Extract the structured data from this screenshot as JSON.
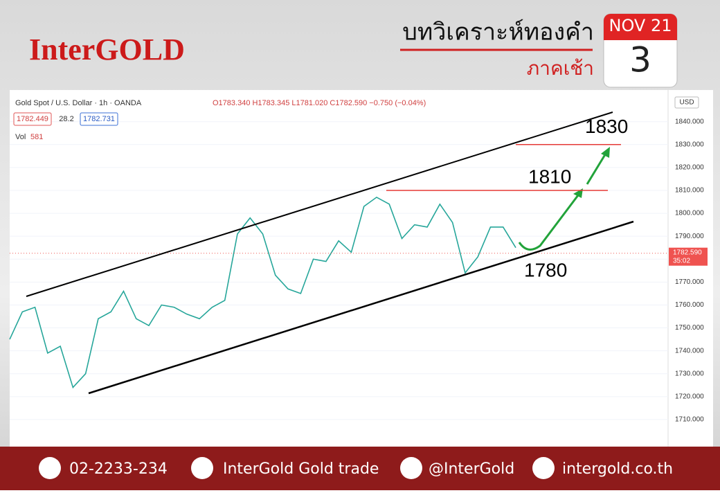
{
  "header": {
    "logo": "InterGOLD",
    "title": "บทวิเคราะห์ทองคำ",
    "subtitle": "ภาคเช้า",
    "month": "NOV 21",
    "day": "3"
  },
  "footer": {
    "phone": "02-2233-234",
    "facebook": "InterGold Gold trade",
    "line": "@InterGold",
    "website": "intergold.co.th"
  },
  "chart_data": {
    "type": "line",
    "title": "Gold Spot / U.S. Dollar · 1h · OANDA",
    "ohlc": "O1783.340 H1783.345 L1781.020 C1782.590 −0.750 (−0.04%)",
    "bid": "1782.449",
    "spread": "28.2",
    "ask": "1782.731",
    "volume_label": "Vol",
    "volume": "581",
    "currency": "USD",
    "color": "#26a69a",
    "values": [
      1745,
      1757,
      1759,
      1739,
      1742,
      1724,
      1730,
      1754,
      1757,
      1766,
      1754,
      1751,
      1760,
      1759,
      1756,
      1754,
      1759,
      1762,
      1791,
      1798,
      1791,
      1773,
      1767,
      1765,
      1780,
      1779,
      1788,
      1783,
      1803,
      1807,
      1804,
      1789,
      1795,
      1794,
      1804,
      1796,
      1774,
      1781,
      1794,
      1794,
      1785
    ],
    "ylim": [
      1700,
      1852
    ],
    "yticks": [
      {
        "value": 1710,
        "label": "1710.000"
      },
      {
        "value": 1720,
        "label": "1720.000"
      },
      {
        "value": 1730,
        "label": "1730.000"
      },
      {
        "value": 1740,
        "label": "1740.000"
      },
      {
        "value": 1750,
        "label": "1750.000"
      },
      {
        "value": 1760,
        "label": "1760.000"
      },
      {
        "value": 1770,
        "label": "1770.000"
      },
      {
        "value": 1780,
        "label": "1780.000"
      },
      {
        "value": 1790,
        "label": "1790.000"
      },
      {
        "value": 1800,
        "label": "1800.000"
      },
      {
        "value": 1810,
        "label": "1810.000"
      },
      {
        "value": 1820,
        "label": "1820.000"
      },
      {
        "value": 1830,
        "label": "1830.000"
      },
      {
        "value": 1840,
        "label": "1840.000"
      }
    ],
    "grid": true,
    "price_tag": {
      "value": 1782.59,
      "label": "1782.590",
      "timer": "35:02",
      "color": "#ef5350"
    },
    "levels": [
      {
        "label": "1830",
        "value": 1830,
        "line": true
      },
      {
        "label": "1810",
        "value": 1810,
        "line": true
      },
      {
        "label": "1780",
        "value": 1780,
        "line": false
      }
    ]
  }
}
